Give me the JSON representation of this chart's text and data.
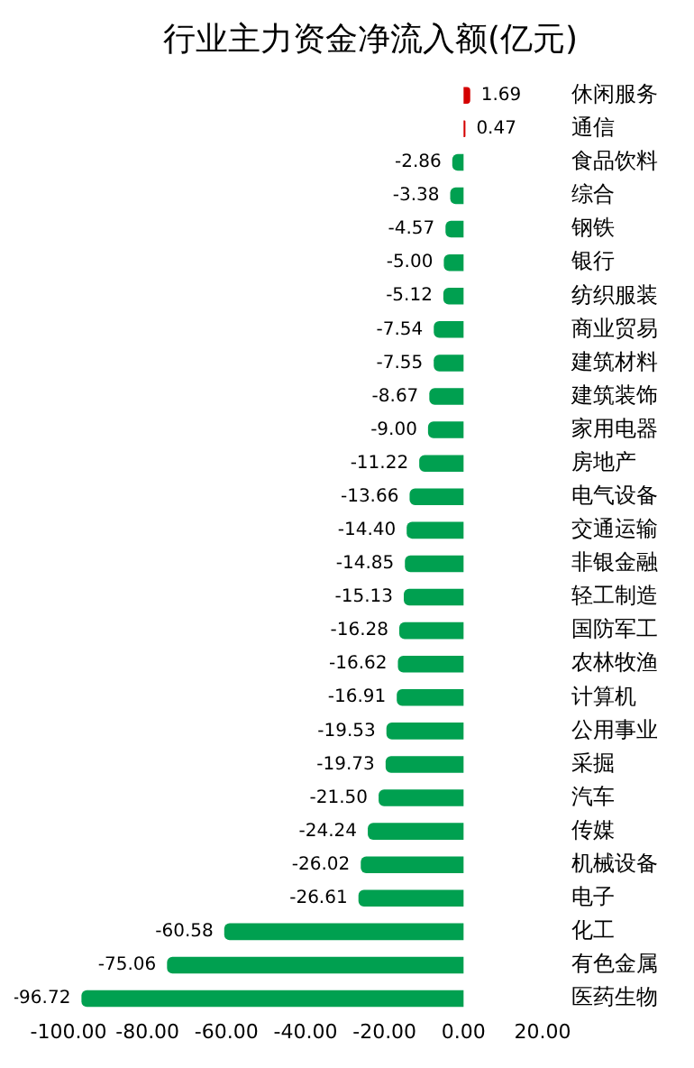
{
  "chart_data": {
    "type": "bar",
    "orientation": "horizontal",
    "title": "行业主力资金净流入额(亿元)",
    "categories": [
      "休闲服务",
      "通信",
      "食品饮料",
      "综合",
      "钢铁",
      "银行",
      "纺织服装",
      "商业贸易",
      "建筑材料",
      "建筑装饰",
      "家用电器",
      "房地产",
      "电气设备",
      "交通运输",
      "非银金融",
      "轻工制造",
      "国防军工",
      "农林牧渔",
      "计算机",
      "公用事业",
      "采掘",
      "汽车",
      "传媒",
      "机械设备",
      "电子",
      "化工",
      "有色金属",
      "医药生物"
    ],
    "values": [
      1.69,
      0.47,
      -2.86,
      -3.38,
      -4.57,
      -5.0,
      -5.12,
      -7.54,
      -7.55,
      -8.67,
      -9.0,
      -11.22,
      -13.66,
      -14.4,
      -14.85,
      -15.13,
      -16.28,
      -16.62,
      -16.91,
      -19.53,
      -19.73,
      -21.5,
      -24.24,
      -26.02,
      -26.61,
      -60.58,
      -75.06,
      -96.72
    ],
    "value_labels": [
      "1.69",
      "0.47",
      "-2.86",
      "-3.38",
      "-4.57",
      "-5.00",
      "-5.12",
      "-7.54",
      "-7.55",
      "-8.67",
      "-9.00",
      "-11.22",
      "-13.66",
      "-14.40",
      "-14.85",
      "-15.13",
      "-16.28",
      "-16.62",
      "-16.91",
      "-19.53",
      "-19.73",
      "-21.50",
      "-24.24",
      "-26.02",
      "-26.61",
      "-60.58",
      "-75.06",
      "-96.72"
    ],
    "colors": [
      "#d40000",
      "#d40000",
      "#00a050",
      "#00a050",
      "#00a050",
      "#00a050",
      "#00a050",
      "#00a050",
      "#00a050",
      "#00a050",
      "#00a050",
      "#00a050",
      "#00a050",
      "#00a050",
      "#00a050",
      "#00a050",
      "#00a050",
      "#00a050",
      "#00a050",
      "#00a050",
      "#00a050",
      "#00a050",
      "#00a050",
      "#00a050",
      "#00a050",
      "#00a050",
      "#00a050",
      "#00a050"
    ],
    "xlim": [
      -100,
      20
    ],
    "xticks": [
      {
        "value": -100,
        "label": "-100.00"
      },
      {
        "value": -80,
        "label": "-80.00"
      },
      {
        "value": -60,
        "label": "-60.00"
      },
      {
        "value": -40,
        "label": "-40.00"
      },
      {
        "value": -20,
        "label": "-20.00"
      },
      {
        "value": 0,
        "label": "0.00"
      },
      {
        "value": 20,
        "label": "20.00"
      }
    ],
    "grid": false,
    "legend": false
  }
}
